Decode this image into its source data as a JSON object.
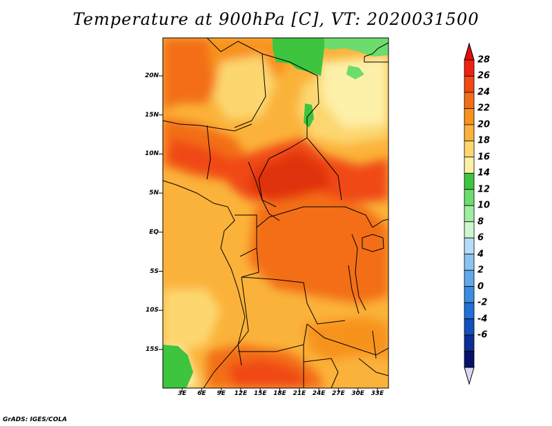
{
  "title": "Temperature at 900hPa [C], VT: 2020031500",
  "credit": "GrADS: IGES/COLA",
  "map": {
    "latitude_labels": [
      "20N",
      "15N",
      "10N",
      "5N",
      "EQ",
      "5S",
      "10S",
      "15S"
    ],
    "longitude_labels": [
      "3E",
      "6E",
      "9E",
      "12E",
      "15E",
      "18E",
      "21E",
      "24E",
      "27E",
      "30E",
      "33E"
    ],
    "units": "C",
    "pressure_level": "900hPa",
    "valid_time": "2020031500"
  },
  "colorbar": {
    "labels": [
      "28",
      "26",
      "24",
      "22",
      "20",
      "18",
      "16",
      "14",
      "12",
      "10",
      "8",
      "6",
      "4",
      "2",
      "0",
      "-2",
      "-4",
      "-6"
    ],
    "colors": [
      "#f02010",
      "#f04a12",
      "#f36e18",
      "#f7931c",
      "#fbb23a",
      "#fcd770",
      "#fdf0a8",
      "#3ec43e",
      "#6cdc6c",
      "#a0eca0",
      "#d0f6d0",
      "#b8dcf8",
      "#8cc4f0",
      "#62a8ea",
      "#3c8ce0",
      "#2070d6",
      "#1450bc",
      "#0c2e96",
      "#08116a"
    ],
    "under_color": "#dcd8f4",
    "over_color": "#e01008"
  }
}
